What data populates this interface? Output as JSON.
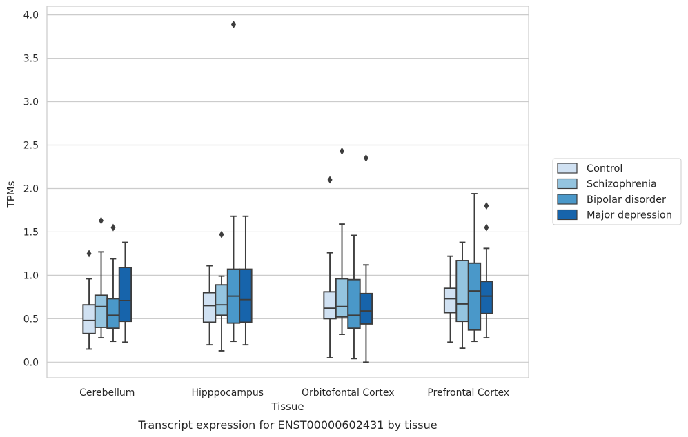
{
  "chart_data": {
    "type": "boxplot",
    "caption": "Transcript expression for ENST00000602431 by tissue",
    "xlabel": "Tissue",
    "ylabel": "TPMs",
    "ylim": [
      -0.18,
      4.1
    ],
    "yticks": [
      "0.0",
      "0.5",
      "1.0",
      "1.5",
      "2.0",
      "2.5",
      "3.0",
      "3.5",
      "4.0"
    ],
    "grid": true,
    "legend_position": "right",
    "categories": [
      "Cerebellum",
      "Hipppocampus",
      "Orbitofontal Cortex",
      "Prefrontal Cortex"
    ],
    "series": [
      {
        "name": "Control",
        "color": "#d0e1f2",
        "boxes": [
          {
            "whislo": 0.15,
            "q1": 0.33,
            "med": 0.48,
            "q3": 0.66,
            "whishi": 0.96,
            "fliers": [
              1.25
            ]
          },
          {
            "whislo": 0.2,
            "q1": 0.46,
            "med": 0.65,
            "q3": 0.8,
            "whishi": 1.11,
            "fliers": []
          },
          {
            "whislo": 0.05,
            "q1": 0.5,
            "med": 0.62,
            "q3": 0.81,
            "whishi": 1.26,
            "fliers": [
              2.1
            ]
          },
          {
            "whislo": 0.23,
            "q1": 0.57,
            "med": 0.73,
            "q3": 0.85,
            "whishi": 1.22,
            "fliers": []
          }
        ]
      },
      {
        "name": "Schizophrenia",
        "color": "#94c4df",
        "boxes": [
          {
            "whislo": 0.28,
            "q1": 0.4,
            "med": 0.64,
            "q3": 0.77,
            "whishi": 1.27,
            "fliers": [
              1.63
            ]
          },
          {
            "whislo": 0.13,
            "q1": 0.54,
            "med": 0.66,
            "q3": 0.89,
            "whishi": 0.99,
            "fliers": [
              1.47
            ]
          },
          {
            "whislo": 0.32,
            "q1": 0.52,
            "med": 0.64,
            "q3": 0.96,
            "whishi": 1.59,
            "fliers": [
              2.43
            ]
          },
          {
            "whislo": 0.16,
            "q1": 0.47,
            "med": 0.67,
            "q3": 1.17,
            "whishi": 1.38,
            "fliers": []
          }
        ]
      },
      {
        "name": "Bipolar disorder",
        "color": "#4a98c9",
        "boxes": [
          {
            "whislo": 0.24,
            "q1": 0.39,
            "med": 0.54,
            "q3": 0.73,
            "whishi": 1.19,
            "fliers": [
              1.55
            ]
          },
          {
            "whislo": 0.24,
            "q1": 0.45,
            "med": 0.76,
            "q3": 1.07,
            "whishi": 1.68,
            "fliers": [
              3.89
            ]
          },
          {
            "whislo": 0.04,
            "q1": 0.39,
            "med": 0.54,
            "q3": 0.95,
            "whishi": 1.46,
            "fliers": []
          },
          {
            "whislo": 0.24,
            "q1": 0.37,
            "med": 0.82,
            "q3": 1.14,
            "whishi": 1.94,
            "fliers": []
          }
        ]
      },
      {
        "name": "Major depression",
        "color": "#1764ab",
        "boxes": [
          {
            "whislo": 0.23,
            "q1": 0.47,
            "med": 0.71,
            "q3": 1.09,
            "whishi": 1.38,
            "fliers": []
          },
          {
            "whislo": 0.2,
            "q1": 0.46,
            "med": 0.72,
            "q3": 1.07,
            "whishi": 1.68,
            "fliers": []
          },
          {
            "whislo": 0.0,
            "q1": 0.44,
            "med": 0.59,
            "q3": 0.79,
            "whishi": 1.12,
            "fliers": [
              2.35
            ]
          },
          {
            "whislo": 0.28,
            "q1": 0.56,
            "med": 0.76,
            "q3": 0.93,
            "whishi": 1.31,
            "fliers": [
              1.55,
              1.8
            ]
          }
        ]
      }
    ]
  }
}
